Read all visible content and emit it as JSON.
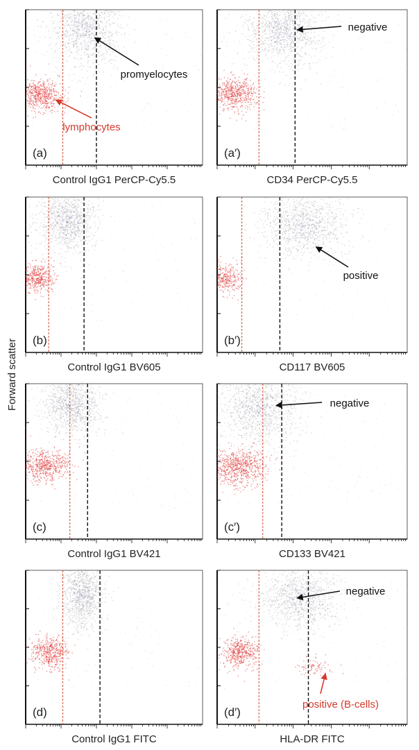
{
  "figure": {
    "y_axis_label": "Forward scatter"
  },
  "colors": {
    "lymphocyte_dots": "#e03a3a",
    "promyelocyte_dots": "#9a9aa4",
    "promyelocyte_core": "#6f74a8",
    "gate_black": "#111111",
    "gate_red": "#d9472b",
    "annotation_red": "#d43a2c",
    "annotation_black": "#111111"
  },
  "chart_data": [
    {
      "type": "scatter",
      "id": "a",
      "panel_label": "(a)",
      "xlabel": "Control IgG1 PerCP-Cy5.5",
      "ylabel": "Forward scatter",
      "x_scale": "log",
      "xlim": [
        0,
        1
      ],
      "ylim": [
        0,
        1
      ],
      "gates": {
        "red": 0.21,
        "black": 0.4
      },
      "populations": [
        {
          "name": "promyelocytes",
          "center": [
            0.34,
            0.88
          ],
          "spread": [
            0.1,
            0.12
          ],
          "count": 1100
        },
        {
          "name": "lymphocytes",
          "center": [
            0.08,
            0.45
          ],
          "spread": [
            0.06,
            0.05
          ],
          "count": 550
        }
      ],
      "annotations": [
        {
          "text": "promyelocytes",
          "color": "annotation_black",
          "target": [
            0.39,
            0.82
          ]
        },
        {
          "text": "lymphocytes",
          "color": "annotation_red",
          "target": [
            0.17,
            0.42
          ]
        }
      ]
    },
    {
      "type": "scatter",
      "id": "a2",
      "panel_label": "(a′)",
      "xlabel": "CD34 PerCP-Cy5.5",
      "ylabel": "Forward scatter",
      "x_scale": "log",
      "xlim": [
        0,
        1
      ],
      "ylim": [
        0,
        1
      ],
      "gates": {
        "red": 0.22,
        "black": 0.41
      },
      "populations": [
        {
          "name": "promyelocytes",
          "center": [
            0.35,
            0.86
          ],
          "spread": [
            0.1,
            0.12
          ],
          "count": 1100
        },
        {
          "name": "lymphocytes",
          "center": [
            0.09,
            0.46
          ],
          "spread": [
            0.06,
            0.05
          ],
          "count": 550
        }
      ],
      "annotations": [
        {
          "text": "negative",
          "color": "annotation_black",
          "target": [
            0.42,
            0.87
          ]
        }
      ]
    },
    {
      "type": "scatter",
      "id": "b",
      "panel_label": "(b)",
      "xlabel": "Control IgG1 BV605",
      "ylabel": "Forward scatter",
      "x_scale": "log",
      "xlim": [
        0,
        1
      ],
      "ylim": [
        0,
        1
      ],
      "gates": {
        "red": 0.13,
        "black": 0.33
      },
      "populations": [
        {
          "name": "promyelocytes",
          "center": [
            0.24,
            0.84
          ],
          "spread": [
            0.08,
            0.1
          ],
          "count": 1000
        },
        {
          "name": "lymphocytes",
          "center": [
            0.06,
            0.48
          ],
          "spread": [
            0.05,
            0.05
          ],
          "count": 450
        }
      ],
      "annotations": []
    },
    {
      "type": "scatter",
      "id": "b2",
      "panel_label": "(b′)",
      "xlabel": "CD117 BV605",
      "ylabel": "Forward scatter",
      "x_scale": "log",
      "xlim": [
        0,
        1
      ],
      "ylim": [
        0,
        1
      ],
      "gates": {
        "red": 0.13,
        "black": 0.33
      },
      "populations": [
        {
          "name": "promyelocytes",
          "center": [
            0.46,
            0.82
          ],
          "spread": [
            0.11,
            0.1
          ],
          "count": 1000
        },
        {
          "name": "lymphocytes",
          "center": [
            0.05,
            0.48
          ],
          "spread": [
            0.04,
            0.05
          ],
          "count": 300
        }
      ],
      "annotations": [
        {
          "text": "positive",
          "color": "annotation_black",
          "target": [
            0.52,
            0.68
          ]
        }
      ]
    },
    {
      "type": "scatter",
      "id": "c",
      "panel_label": "(c)",
      "xlabel": "Control IgG1 BV421",
      "ylabel": "Forward scatter",
      "x_scale": "log",
      "xlim": [
        0,
        1
      ],
      "ylim": [
        0,
        1
      ],
      "gates": {
        "red": 0.25,
        "black": 0.35
      },
      "populations": [
        {
          "name": "promyelocytes",
          "center": [
            0.26,
            0.87
          ],
          "spread": [
            0.08,
            0.1
          ],
          "count": 1000
        },
        {
          "name": "lymphocytes",
          "center": [
            0.11,
            0.47
          ],
          "spread": [
            0.07,
            0.05
          ],
          "count": 550
        }
      ],
      "annotations": []
    },
    {
      "type": "scatter",
      "id": "c2",
      "panel_label": "(c′)",
      "xlabel": "CD133 BV421",
      "ylabel": "Forward scatter",
      "x_scale": "log",
      "xlim": [
        0,
        1
      ],
      "ylim": [
        0,
        1
      ],
      "gates": {
        "red": 0.24,
        "black": 0.34
      },
      "populations": [
        {
          "name": "promyelocytes",
          "center": [
            0.22,
            0.84
          ],
          "spread": [
            0.1,
            0.12
          ],
          "count": 1100
        },
        {
          "name": "lymphocytes",
          "center": [
            0.11,
            0.46
          ],
          "spread": [
            0.07,
            0.06
          ],
          "count": 700
        }
      ],
      "annotations": [
        {
          "text": "negative",
          "color": "annotation_black",
          "target": [
            0.31,
            0.86
          ]
        }
      ]
    },
    {
      "type": "scatter",
      "id": "d",
      "panel_label": "(d)",
      "xlabel": "Control IgG1 FITC",
      "ylabel": "Forward scatter",
      "x_scale": "log",
      "xlim": [
        0,
        1
      ],
      "ylim": [
        0,
        1
      ],
      "gates": {
        "red": 0.21,
        "black": 0.42
      },
      "populations": [
        {
          "name": "promyelocytes",
          "center": [
            0.32,
            0.84
          ],
          "spread": [
            0.06,
            0.11
          ],
          "count": 1000
        },
        {
          "name": "lymphocytes",
          "center": [
            0.14,
            0.47
          ],
          "spread": [
            0.05,
            0.05
          ],
          "count": 450
        }
      ],
      "annotations": []
    },
    {
      "type": "scatter",
      "id": "d2",
      "panel_label": "(d′)",
      "xlabel": "HLA-DR FITC",
      "ylabel": "Forward scatter",
      "x_scale": "log",
      "xlim": [
        0,
        1
      ],
      "ylim": [
        0,
        1
      ],
      "gates": {
        "red": 0.22,
        "black": 0.48
      },
      "populations": [
        {
          "name": "promyelocytes",
          "center": [
            0.43,
            0.82
          ],
          "spread": [
            0.1,
            0.1
          ],
          "count": 1000
        },
        {
          "name": "lymphocytes",
          "center": [
            0.12,
            0.47
          ],
          "spread": [
            0.05,
            0.05
          ],
          "count": 450
        },
        {
          "name": "B-cells",
          "center": [
            0.52,
            0.37
          ],
          "spread": [
            0.05,
            0.03
          ],
          "count": 80
        }
      ],
      "annotations": [
        {
          "text": "negative",
          "color": "annotation_black",
          "target": [
            0.42,
            0.82
          ]
        },
        {
          "text": "positive (B-cells)",
          "color": "annotation_red",
          "target": [
            0.57,
            0.33
          ]
        }
      ]
    }
  ]
}
